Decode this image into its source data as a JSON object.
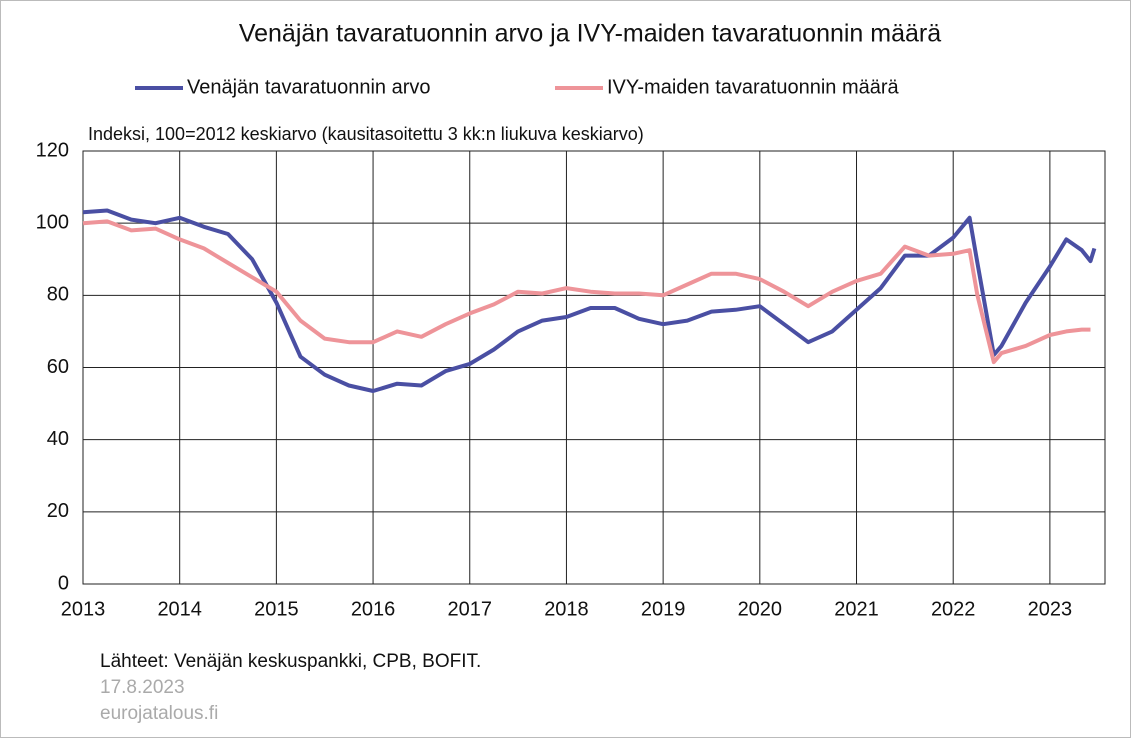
{
  "chart_data": {
    "type": "line",
    "title": "Venäjän tavaratuonnin arvo ja IVY-maiden tavaratuonnin määrä",
    "subtitle": "Indeksi, 100=2012 keskiarvo (kausitasoitettu 3 kk:n liukuva keskiarvo)",
    "x": [
      2013,
      2013.25,
      2013.5,
      2013.75,
      2014,
      2014.25,
      2014.5,
      2014.75,
      2015,
      2015.25,
      2015.5,
      2015.75,
      2016,
      2016.25,
      2016.5,
      2016.75,
      2017,
      2017.25,
      2017.5,
      2017.75,
      2018,
      2018.25,
      2018.5,
      2018.75,
      2019,
      2019.25,
      2019.5,
      2019.75,
      2020,
      2020.25,
      2020.5,
      2020.75,
      2021,
      2021.25,
      2021.5,
      2021.75,
      2022,
      2022.17,
      2022.25,
      2022.42,
      2022.5,
      2022.75,
      2023,
      2023.17,
      2023.33,
      2023.42,
      2023.46
    ],
    "series": [
      {
        "name": "Venäjän tavaratuonnin arvo",
        "color": "#4a4fa3",
        "values": [
          103,
          103.5,
          101,
          100,
          101.5,
          99,
          97,
          90,
          78,
          63,
          58,
          55,
          53.5,
          55.5,
          55,
          59,
          61,
          65,
          70,
          73,
          74,
          76.5,
          76.5,
          73.5,
          72,
          73,
          75.5,
          76,
          77,
          72,
          67,
          70,
          76,
          82,
          91,
          91,
          96,
          101.5,
          89,
          63.5,
          66,
          78,
          88,
          95.5,
          92.5,
          89.5,
          93
        ]
      },
      {
        "name": "IVY-maiden tavaratuonnin määrä",
        "color": "#ee9499",
        "values": [
          100,
          100.5,
          98,
          98.5,
          95.5,
          93,
          89,
          85,
          81,
          73,
          68,
          67,
          67,
          70,
          68.5,
          72,
          75,
          77.5,
          81,
          80.5,
          82,
          81,
          80.5,
          80.5,
          80,
          83,
          86,
          86,
          84.5,
          81,
          77,
          81,
          84,
          86,
          93.5,
          91,
          91.5,
          92.5,
          80,
          61.5,
          64,
          66,
          69,
          70,
          70.5,
          70.5,
          null
        ]
      }
    ],
    "xlim": [
      2013,
      2023.57
    ],
    "xticks": [
      2013,
      2014,
      2015,
      2016,
      2017,
      2018,
      2019,
      2020,
      2021,
      2022,
      2023
    ],
    "ylim": [
      0,
      120
    ],
    "yticks": [
      0,
      20,
      40,
      60,
      80,
      100,
      120
    ],
    "grid": true
  },
  "footer": {
    "source": "Lähteet: Venäjän keskuspankki, CPB, BOFIT.",
    "date": "17.8.2023",
    "website": "eurojatalous.fi"
  }
}
